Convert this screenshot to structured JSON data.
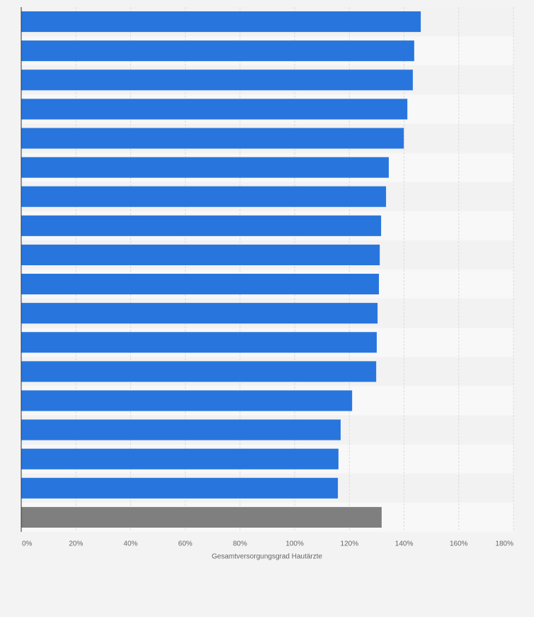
{
  "chart_data": {
    "type": "hbar",
    "x_label": "Gesamtversorgungsgrad Hautärzte",
    "categories": [
      null,
      null,
      null,
      null,
      null,
      null,
      null,
      null,
      null,
      null,
      null,
      null,
      null,
      null,
      null,
      null,
      null,
      null
    ],
    "values": [
      146.1,
      143.7,
      143.2,
      141.2,
      139.9,
      134.4,
      133.4,
      131.6,
      131.1,
      130.8,
      130.3,
      130.0,
      129.8,
      121.0,
      116.8,
      116.0,
      115.8,
      131.8
    ],
    "colors": [
      "#2876dd",
      "#2876dd",
      "#2876dd",
      "#2876dd",
      "#2876dd",
      "#2876dd",
      "#2876dd",
      "#2876dd",
      "#2876dd",
      "#2876dd",
      "#2876dd",
      "#2876dd",
      "#2876dd",
      "#2876dd",
      "#2876dd",
      "#2876dd",
      "#2876dd",
      "#7f7f7f"
    ],
    "xlim": [
      0,
      180
    ],
    "xticks": [
      {
        "value": 0,
        "label": "0%"
      },
      {
        "value": 20,
        "label": "20%"
      },
      {
        "value": 40,
        "label": "40%"
      },
      {
        "value": 60,
        "label": "60%"
      },
      {
        "value": 80,
        "label": "80%"
      },
      {
        "value": 100,
        "label": "100%"
      },
      {
        "value": 120,
        "label": "120%"
      },
      {
        "value": 140,
        "label": "140%"
      },
      {
        "value": 160,
        "label": "160%"
      },
      {
        "value": 180,
        "label": "180%"
      }
    ],
    "grid": true
  }
}
